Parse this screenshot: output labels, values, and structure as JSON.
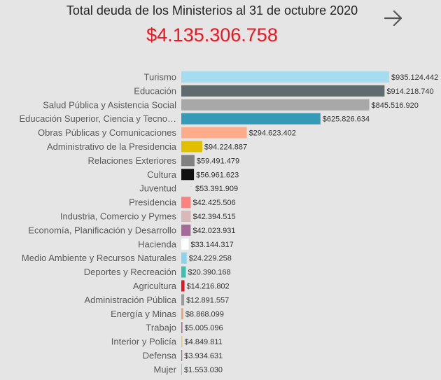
{
  "header": {
    "title": "Total deuda de los Ministerios al 31 de octubre 2020",
    "total": "$4.135.306.758",
    "next_icon": "arrow-right-icon"
  },
  "colors": {
    "background": "#e5e5e5",
    "total_text": "#f0131e"
  },
  "chart_data": {
    "type": "bar",
    "orientation": "horizontal",
    "title": "Total deuda de los Ministerios al 31 de octubre 2020",
    "xlim": [
      0,
      935124442
    ],
    "grid": false,
    "categories": [
      "Turismo",
      "Educación",
      "Salud Pública y Asistencia Social",
      "Educación Superior, Ciencia y Tecno…",
      "Obras Públicas y Comunicaciones",
      "Administrativo de la Presidencia",
      "Relaciones Exteriores",
      "Cultura",
      "Juventud",
      "Presidencia",
      "Industria, Comercio y Pymes",
      "Economía, Planificación y Desarrollo",
      "Hacienda",
      "Medio Ambiente y Recursos Naturales",
      "Deportes y Recreación",
      "Agricultura",
      "Administración Pública",
      "Energía y Minas",
      "Trabajo",
      "Interior y Policía",
      "Defensa",
      "Mujer"
    ],
    "values": [
      935124442,
      914218740,
      845516920,
      625826634,
      294623402,
      94224887,
      59491479,
      56961623,
      53391909,
      42425506,
      42394515,
      42023931,
      33144317,
      24229258,
      20390168,
      14216802,
      12891557,
      8868099,
      5005096,
      4849811,
      3934631,
      1553030
    ],
    "value_labels": [
      "$935.124.442",
      "$914.218.740",
      "$845.516.920",
      "$625.826.634",
      "$294.623.402",
      "$94.224.887",
      "$59.491.479",
      "$56.961.623",
      "$53.391.909",
      "$42.425.506",
      "$42.394.515",
      "$42.023.931",
      "$33.144.317",
      "$24.229.258",
      "$20.390.168",
      "$14.216.802",
      "$12.891.557",
      "$8.868.099",
      "$5.005.096",
      "$4.849.811",
      "$3.934.631",
      "$1.553.030"
    ],
    "colors": [
      "#a6dcf0",
      "#5f6b6d",
      "#a8a8a8",
      "#3599b8",
      "#fdab89",
      "#dfbf00",
      "#818181",
      "#111111",
      "#e5e5e5",
      "#fd817e",
      "#d9b8b8",
      "#a66999",
      "#ffffff",
      "#8ad4eb",
      "#3cc0b4",
      "#e81123",
      "#9a9a9a",
      "#f2a16a",
      "#a66999",
      "#e8c85a",
      "#a66999",
      "#a0b8c8"
    ]
  }
}
